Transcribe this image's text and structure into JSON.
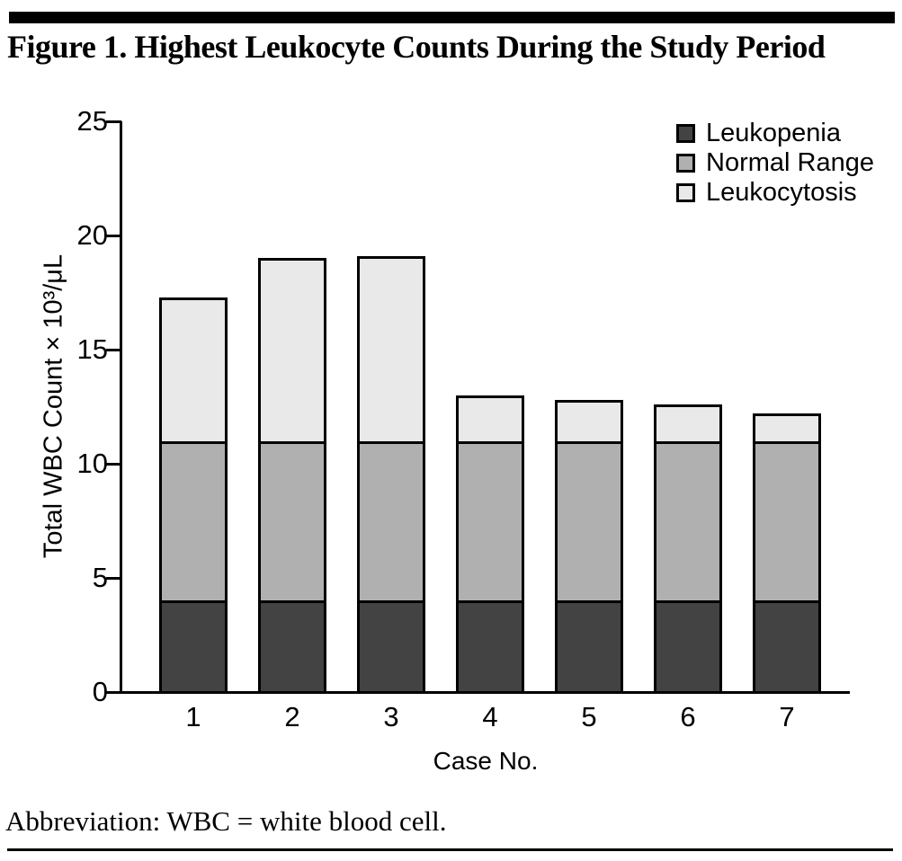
{
  "title": "Figure 1. Highest Leukocyte Counts During the Study Period",
  "footnote": "Abbreviation: WBC = white blood cell.",
  "chart_data": {
    "type": "bar",
    "stacked": true,
    "title": "Figure 1. Highest Leukocyte Counts During the Study Period",
    "xlabel": "Case No.",
    "ylabel": "Total WBC Count × 10³/μL",
    "categories": [
      "1",
      "2",
      "3",
      "4",
      "5",
      "6",
      "7"
    ],
    "ylim": [
      0,
      25
    ],
    "yticks": [
      0,
      5,
      10,
      15,
      20,
      25
    ],
    "grid": false,
    "legend_position": "top-right",
    "series": [
      {
        "name": "Leukopenia",
        "color": "#434343",
        "values": [
          4,
          4,
          4,
          4,
          4,
          4,
          4
        ]
      },
      {
        "name": "Normal Range",
        "color": "#b0b0b0",
        "values": [
          7,
          7,
          7,
          7,
          7,
          7,
          7
        ]
      },
      {
        "name": "Leukocytosis",
        "color": "#e9e9e9",
        "values": [
          6.3,
          8.0,
          8.1,
          2.0,
          1.8,
          1.6,
          1.2
        ]
      }
    ],
    "bar_totals": [
      17.3,
      19.0,
      19.1,
      13.0,
      12.8,
      12.6,
      12.2
    ],
    "thresholds": {
      "leukopenia_upper": 4,
      "normal_upper": 11
    }
  }
}
